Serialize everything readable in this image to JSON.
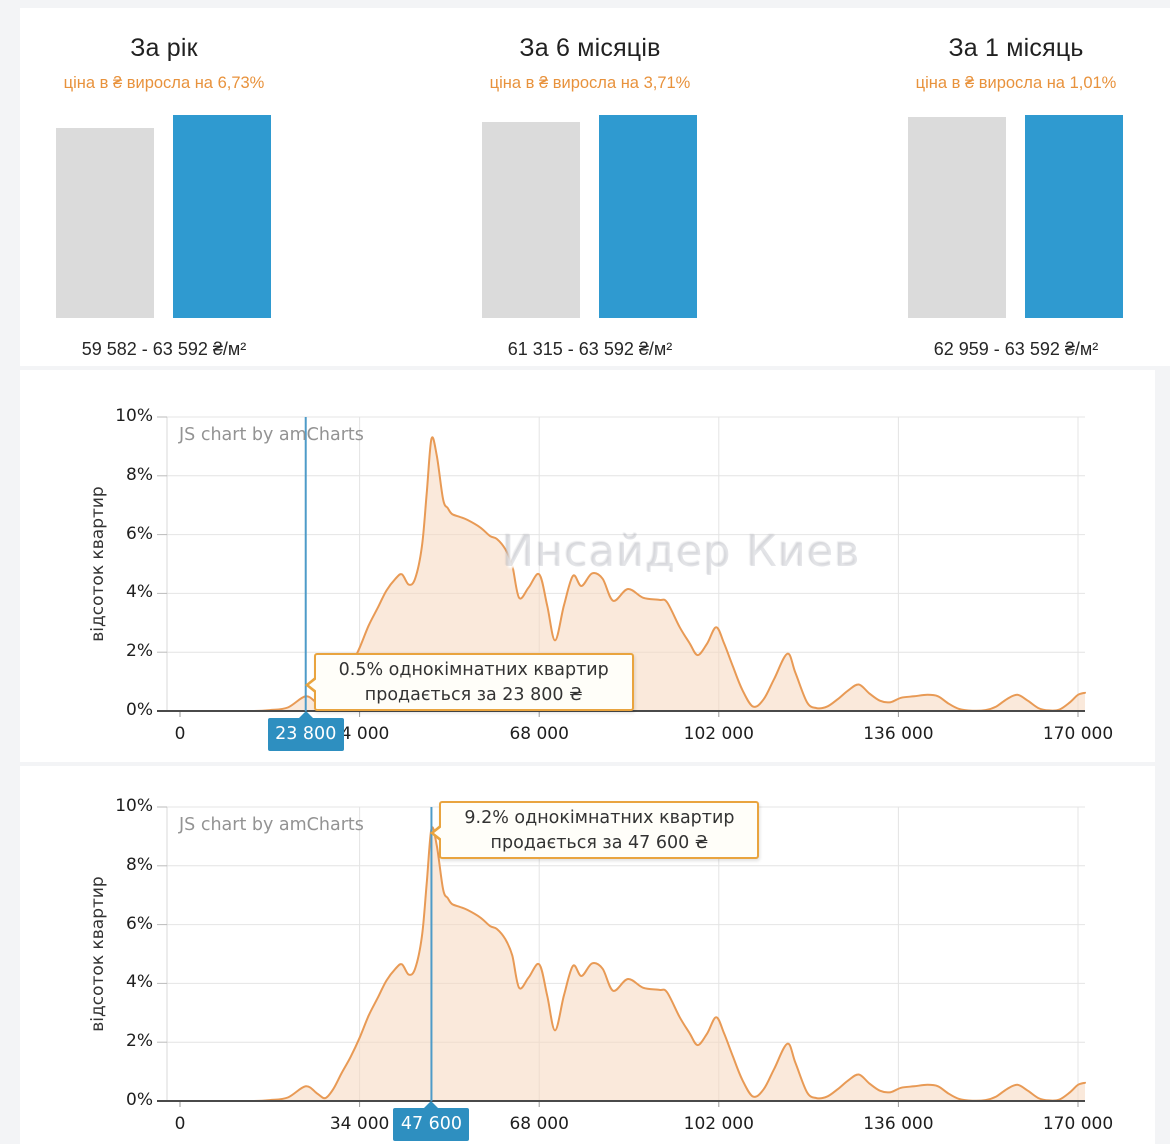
{
  "top_panels": [
    {
      "title": "За рік",
      "subtitle": "ціна в ₴ виросла на 6,73%",
      "range_label": "59 582 - 63 592 ₴/м²",
      "old_price": 59582,
      "new_price": 63592
    },
    {
      "title": "За 6 місяців",
      "subtitle": "ціна в ₴ виросла на 3,71%",
      "range_label": "61 315 - 63 592 ₴/м²",
      "old_price": 61315,
      "new_price": 63592
    },
    {
      "title": "За 1 місяць",
      "subtitle": "ціна в ₴ виросла на 1,01%",
      "range_label": "62 959 - 63 592 ₴/м²",
      "old_price": 62959,
      "new_price": 63592
    }
  ],
  "colors": {
    "bar_gray": "#dbdbdb",
    "bar_blue": "#2f9ad0",
    "orange_text": "#e8923c",
    "curve_stroke": "#e89a55",
    "curve_fill": "rgba(246,215,190,0.55)",
    "cursor_line": "#4e9bc8",
    "badge_bg": "#2e8fc0",
    "tooltip_border": "#e9a43f",
    "grid": "#e4e4e4",
    "axis_line": "#4a4a4a",
    "y_axis_line": "#d8d8d8",
    "tick_mark": "#999999"
  },
  "chart_data": [
    {
      "type": "area",
      "ylabel": "відсоток квартир",
      "xlabel": "",
      "watermark": "JS chart by amCharts",
      "big_watermark": "Инсайдер Киев",
      "x_ticks": [
        "0",
        "34 000",
        "68 000",
        "102 000",
        "136 000",
        "170 000"
      ],
      "y_ticks": [
        "0%",
        "2%",
        "4%",
        "6%",
        "8%",
        "10%"
      ],
      "xlim": [
        0,
        170000
      ],
      "ylim": [
        0,
        10
      ],
      "grid": true,
      "cursor": {
        "x": 23800,
        "value": 0.5,
        "badge": "23 800",
        "tooltip_line1": "0.5% однокімнатних квартир",
        "tooltip_line2": "продається за 23 800 ₴",
        "tooltip_pos": "bottom"
      },
      "series": [
        {
          "name": "відсоток квартир",
          "x": [
            0,
            8000,
            14000,
            17000,
            20400,
            23800,
            26000,
            27500,
            29000,
            30600,
            32300,
            34000,
            35700,
            37400,
            39100,
            40800,
            42000,
            43300,
            44500,
            45800,
            46700,
            47600,
            48600,
            49800,
            50700,
            51500,
            53000,
            54400,
            56800,
            58700,
            60000,
            61600,
            62900,
            64200,
            66000,
            68000,
            69500,
            71000,
            72700,
            74400,
            76000,
            78000,
            80000,
            82000,
            84800,
            87700,
            90800,
            92200,
            94600,
            96500,
            98000,
            99800,
            101500,
            103000,
            104700,
            106500,
            108500,
            110500,
            112500,
            115000,
            116500,
            118700,
            120500,
            122500,
            124500,
            126500,
            128500,
            130500,
            132500,
            134500,
            136500,
            139000,
            141500,
            143500,
            145500,
            147500,
            150000,
            152500,
            154500,
            156500,
            158500,
            160500,
            162500,
            164500,
            166500,
            168500,
            170000
          ],
          "y": [
            0,
            0,
            0,
            0.03,
            0.12,
            0.5,
            0.25,
            0.1,
            0.4,
            0.95,
            1.5,
            2.15,
            2.9,
            3.5,
            4.1,
            4.5,
            4.65,
            4.3,
            4.5,
            5.6,
            7.4,
            9.25,
            8.7,
            7.2,
            6.9,
            6.7,
            6.6,
            6.5,
            6.25,
            5.95,
            5.85,
            5.5,
            4.95,
            3.85,
            4.2,
            4.65,
            3.6,
            2.4,
            3.6,
            4.6,
            4.25,
            4.68,
            4.5,
            3.75,
            4.15,
            3.85,
            3.78,
            3.7,
            2.85,
            2.3,
            1.9,
            2.3,
            2.85,
            2.3,
            1.5,
            0.7,
            0.15,
            0.4,
            1.1,
            1.95,
            1.3,
            0.3,
            0.1,
            0.15,
            0.4,
            0.7,
            0.9,
            0.6,
            0.35,
            0.3,
            0.45,
            0.5,
            0.55,
            0.5,
            0.25,
            0.07,
            0.01,
            0.03,
            0.15,
            0.4,
            0.55,
            0.35,
            0.1,
            0.02,
            0.05,
            0.3,
            0.55
          ]
        }
      ]
    },
    {
      "type": "area",
      "ylabel": "відсоток квартир",
      "xlabel": "",
      "watermark": "JS chart by amCharts",
      "big_watermark": "",
      "x_ticks": [
        "0",
        "34 000",
        "68 000",
        "102 000",
        "136 000",
        "170 000"
      ],
      "y_ticks": [
        "0%",
        "2%",
        "4%",
        "6%",
        "8%",
        "10%"
      ],
      "xlim": [
        0,
        170000
      ],
      "ylim": [
        0,
        10
      ],
      "grid": true,
      "cursor": {
        "x": 47600,
        "value": 9.2,
        "badge": "47 600",
        "tooltip_line1": "9.2% однокімнатних квартир",
        "tooltip_line2": "продається за 47 600 ₴",
        "tooltip_pos": "top"
      },
      "series": [
        {
          "name": "відсоток квартир",
          "x": [
            0,
            8000,
            14000,
            17000,
            20400,
            23800,
            26000,
            27500,
            29000,
            30600,
            32300,
            34000,
            35700,
            37400,
            39100,
            40800,
            42000,
            43300,
            44500,
            45800,
            46700,
            47600,
            48600,
            49800,
            50700,
            51500,
            53000,
            54400,
            56800,
            58700,
            60000,
            61600,
            62900,
            64200,
            66000,
            68000,
            69500,
            71000,
            72700,
            74400,
            76000,
            78000,
            80000,
            82000,
            84800,
            87700,
            90800,
            92200,
            94600,
            96500,
            98000,
            99800,
            101500,
            103000,
            104700,
            106500,
            108500,
            110500,
            112500,
            115000,
            116500,
            118700,
            120500,
            122500,
            124500,
            126500,
            128500,
            130500,
            132500,
            134500,
            136500,
            139000,
            141500,
            143500,
            145500,
            147500,
            150000,
            152500,
            154500,
            156500,
            158500,
            160500,
            162500,
            164500,
            166500,
            168500,
            170000
          ],
          "y": [
            0,
            0,
            0,
            0.03,
            0.12,
            0.5,
            0.25,
            0.1,
            0.4,
            0.95,
            1.5,
            2.15,
            2.9,
            3.5,
            4.1,
            4.5,
            4.65,
            4.3,
            4.5,
            5.6,
            7.4,
            9.25,
            8.7,
            7.2,
            6.9,
            6.7,
            6.6,
            6.5,
            6.25,
            5.95,
            5.85,
            5.5,
            4.95,
            3.85,
            4.2,
            4.65,
            3.6,
            2.4,
            3.6,
            4.6,
            4.25,
            4.68,
            4.5,
            3.75,
            4.15,
            3.85,
            3.78,
            3.7,
            2.85,
            2.3,
            1.9,
            2.3,
            2.85,
            2.3,
            1.5,
            0.7,
            0.15,
            0.4,
            1.1,
            1.95,
            1.3,
            0.3,
            0.1,
            0.15,
            0.4,
            0.7,
            0.9,
            0.6,
            0.35,
            0.3,
            0.45,
            0.5,
            0.55,
            0.5,
            0.25,
            0.07,
            0.01,
            0.03,
            0.15,
            0.4,
            0.55,
            0.35,
            0.1,
            0.02,
            0.05,
            0.3,
            0.55
          ]
        }
      ]
    }
  ]
}
